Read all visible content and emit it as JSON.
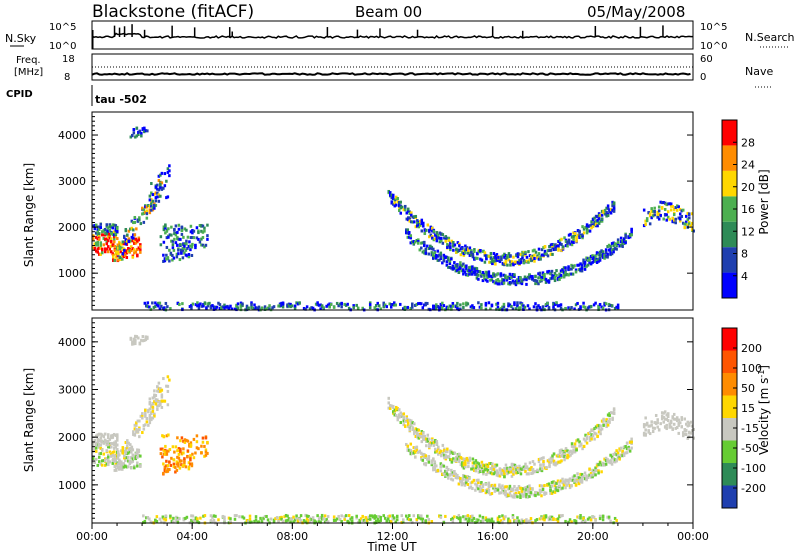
{
  "header": {
    "station": "Blackstone (fitACF)",
    "beam": "Beam 00",
    "date": "05/May/2008"
  },
  "top_panels": {
    "nsky_label": "N.Sky",
    "nsearch_label": "N.Search",
    "nsky_ticks": [
      "10^5",
      "10^0"
    ],
    "nsearch_ticks": [
      "10^5",
      "10^0"
    ],
    "freq_label": "Freq.",
    "freq_unit": "[MHz]",
    "freq_ticks": [
      "18",
      "8"
    ],
    "nave_label": "Nave",
    "nave_ticks": [
      "60",
      "0"
    ],
    "cpid_label": "CPID",
    "cpid_text": "tau -502"
  },
  "chart_data": [
    {
      "type": "heatmap",
      "name": "power",
      "ylabel": "Slant Range [km]",
      "y_ticks": [
        1000,
        2000,
        3000,
        4000
      ],
      "ylim": [
        200,
        4500
      ],
      "colorbar_label": "Power [dB]",
      "colorbar_ticks": [
        "28",
        "24",
        "20",
        "16",
        "12",
        "8",
        "4"
      ],
      "colors": [
        "#0000ff",
        "#1f3faf",
        "#2e8b57",
        "#4caf50",
        "#ffd700",
        "#ff8c00",
        "#ff0000"
      ]
    },
    {
      "type": "heatmap",
      "name": "velocity",
      "ylabel": "Slant Range [km]",
      "y_ticks": [
        1000,
        2000,
        3000,
        4000
      ],
      "ylim": [
        200,
        4500
      ],
      "colorbar_label": "Velocity [m s",
      "colorbar_label_sup": "-1",
      "colorbar_label_end": "]",
      "colorbar_ticks": [
        "200",
        "100",
        "50",
        "15",
        "-15",
        "-50",
        "-100",
        "-200"
      ],
      "colors": [
        "#1f3faf",
        "#2e8b57",
        "#66cc33",
        "#c8c8c0",
        "#ffd700",
        "#ff8c00",
        "#ff5500",
        "#ff0000"
      ]
    }
  ],
  "xaxis": {
    "ticks": [
      "00:00",
      "04:00",
      "08:00",
      "12:00",
      "16:00",
      "20:00",
      "00:00"
    ],
    "label": "Time UT"
  }
}
